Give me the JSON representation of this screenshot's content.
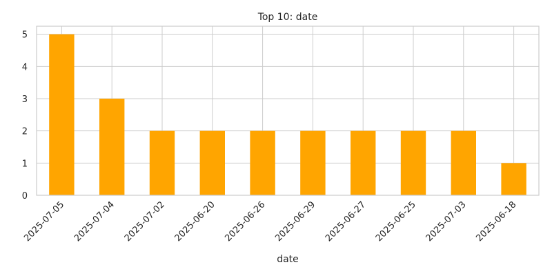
{
  "chart_data": {
    "type": "bar",
    "title": "Top 10: date",
    "xlabel": "date",
    "ylabel": "",
    "categories": [
      "2025-07-05",
      "2025-07-04",
      "2025-07-02",
      "2025-06-20",
      "2025-06-26",
      "2025-06-29",
      "2025-06-27",
      "2025-06-25",
      "2025-07-03",
      "2025-06-18"
    ],
    "values": [
      5,
      3,
      2,
      2,
      2,
      2,
      2,
      2,
      2,
      1
    ],
    "ylim": [
      0,
      5.25
    ],
    "yticks": [
      0,
      1,
      2,
      3,
      4,
      5
    ],
    "grid": true,
    "bar_color": "#ffa500"
  }
}
